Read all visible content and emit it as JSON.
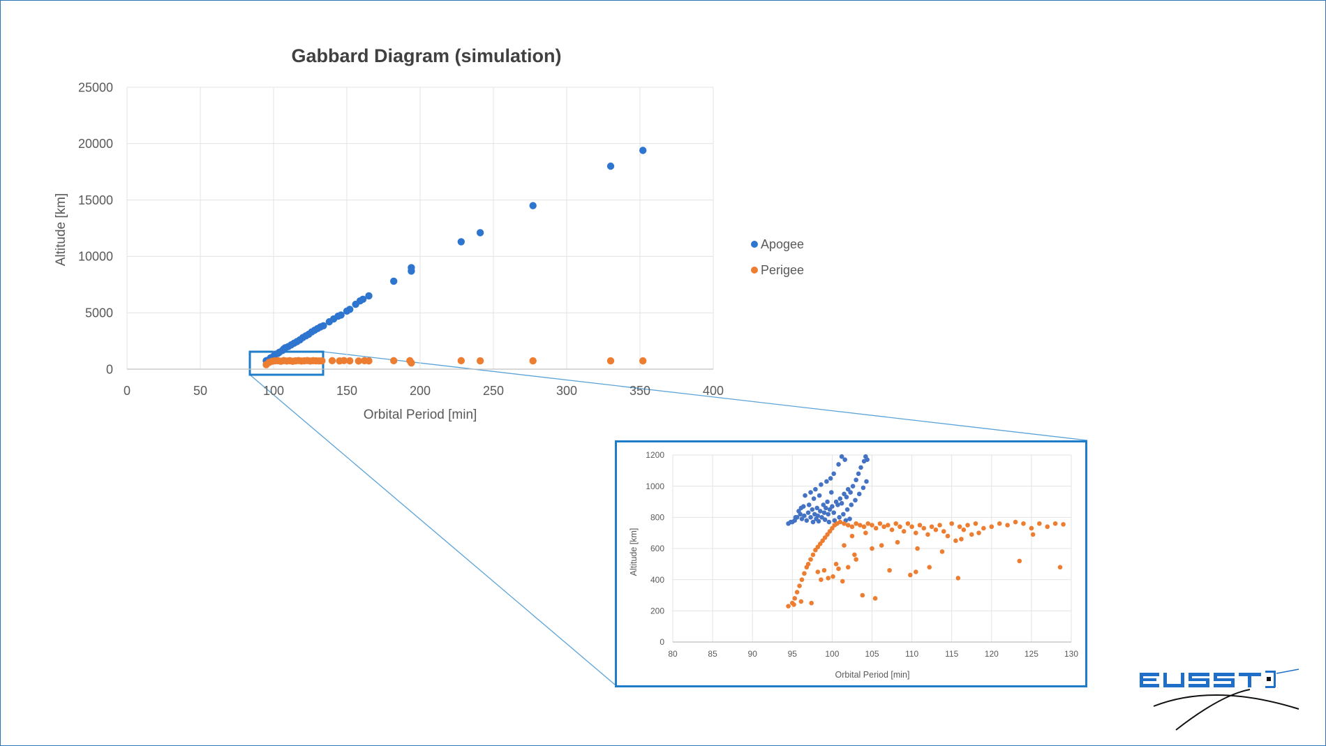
{
  "chart_data": [
    {
      "type": "scatter",
      "title": "Gabbard Diagram (simulation)",
      "xlabel": "Orbital Period [min]",
      "ylabel": "Altitude  [km]",
      "xlim": [
        0,
        400
      ],
      "ylim": [
        0,
        25000
      ],
      "xticks": [
        0,
        50,
        100,
        150,
        200,
        250,
        300,
        350,
        400
      ],
      "yticks": [
        0,
        5000,
        10000,
        15000,
        20000,
        25000
      ],
      "grid": true,
      "legend": "right",
      "series": [
        {
          "name": "Apogee",
          "color": "#2e75d0",
          "points": [
            [
              95,
              750
            ],
            [
              97,
              850
            ],
            [
              98,
              1000
            ],
            [
              100,
              1150
            ],
            [
              101,
              1300
            ],
            [
              103,
              1400
            ],
            [
              104,
              1500
            ],
            [
              106,
              1650
            ],
            [
              107,
              1800
            ],
            [
              108,
              1900
            ],
            [
              110,
              2000
            ],
            [
              112,
              2150
            ],
            [
              114,
              2300
            ],
            [
              116,
              2450
            ],
            [
              118,
              2600
            ],
            [
              120,
              2800
            ],
            [
              122,
              2950
            ],
            [
              124,
              3100
            ],
            [
              126,
              3300
            ],
            [
              128,
              3450
            ],
            [
              130,
              3600
            ],
            [
              132,
              3750
            ],
            [
              134,
              3850
            ],
            [
              138,
              4200
            ],
            [
              141,
              4450
            ],
            [
              144,
              4700
            ],
            [
              146,
              4800
            ],
            [
              150,
              5150
            ],
            [
              152,
              5300
            ],
            [
              156,
              5750
            ],
            [
              159,
              6050
            ],
            [
              161,
              6200
            ],
            [
              165,
              6500
            ],
            [
              182,
              7800
            ],
            [
              194,
              8700
            ],
            [
              194,
              9000
            ],
            [
              228,
              11300
            ],
            [
              241,
              12100
            ],
            [
              277,
              14500
            ],
            [
              330,
              18000
            ],
            [
              352,
              19400
            ]
          ]
        },
        {
          "name": "Perigee",
          "color": "#ed7d31",
          "points": [
            [
              95,
              400
            ],
            [
              97,
              600
            ],
            [
              99,
              700
            ],
            [
              101,
              740
            ],
            [
              103,
              750
            ],
            [
              105,
              700
            ],
            [
              107,
              760
            ],
            [
              109,
              720
            ],
            [
              111,
              750
            ],
            [
              113,
              700
            ],
            [
              115,
              740
            ],
            [
              117,
              760
            ],
            [
              119,
              720
            ],
            [
              121,
              740
            ],
            [
              123,
              760
            ],
            [
              125,
              720
            ],
            [
              127,
              750
            ],
            [
              129,
              740
            ],
            [
              131,
              730
            ],
            [
              133,
              740
            ],
            [
              140,
              750
            ],
            [
              145,
              730
            ],
            [
              148,
              760
            ],
            [
              152,
              740
            ],
            [
              158,
              720
            ],
            [
              162,
              750
            ],
            [
              165,
              730
            ],
            [
              182,
              750
            ],
            [
              193,
              750
            ],
            [
              194,
              550
            ],
            [
              228,
              750
            ],
            [
              241,
              740
            ],
            [
              277,
              740
            ],
            [
              330,
              740
            ],
            [
              352,
              740
            ]
          ]
        }
      ]
    },
    {
      "type": "scatter",
      "xlabel": "Orbital Period [min]",
      "ylabel": "Altitude  [km]",
      "xlim": [
        80,
        130
      ],
      "ylim": [
        0,
        1200
      ],
      "xticks": [
        80,
        85,
        90,
        95,
        100,
        105,
        110,
        115,
        120,
        125,
        130
      ],
      "yticks": [
        0,
        200,
        400,
        600,
        800,
        1000,
        1200
      ],
      "grid": true,
      "series": [
        {
          "name": "Apogee",
          "color": "#4472c4",
          "points": [
            [
              94.5,
              760
            ],
            [
              95,
              770
            ],
            [
              95.3,
              780
            ],
            [
              95.6,
              800
            ],
            [
              96,
              820
            ],
            [
              96.2,
              790
            ],
            [
              96.5,
              810
            ],
            [
              96.8,
              780
            ],
            [
              97,
              830
            ],
            [
              97.3,
              800
            ],
            [
              97.5,
              850
            ],
            [
              97.8,
              820
            ],
            [
              98,
              790
            ],
            [
              98.2,
              810
            ],
            [
              98.5,
              840
            ],
            [
              98.7,
              800
            ],
            [
              99,
              830
            ],
            [
              99.2,
              860
            ],
            [
              99.5,
              820
            ],
            [
              99.7,
              850
            ],
            [
              100,
              870
            ],
            [
              100.2,
              830
            ],
            [
              100.5,
              900
            ],
            [
              100.7,
              880
            ],
            [
              101,
              920
            ],
            [
              101.2,
              890
            ],
            [
              101.5,
              950
            ],
            [
              101.8,
              930
            ],
            [
              102,
              980
            ],
            [
              102.3,
              960
            ],
            [
              102.6,
              1000
            ],
            [
              103,
              1040
            ],
            [
              103.3,
              1080
            ],
            [
              103.6,
              1120
            ],
            [
              104,
              1160
            ],
            [
              104.2,
              1190
            ],
            [
              104.4,
              1170
            ],
            [
              101.2,
              1190
            ],
            [
              101.6,
              1170
            ],
            [
              100.8,
              1140
            ],
            [
              100.2,
              1080
            ],
            [
              99.8,
              1050
            ],
            [
              99.3,
              1030
            ],
            [
              98.6,
              1010
            ],
            [
              97.9,
              980
            ],
            [
              97.3,
              960
            ],
            [
              96.6,
              940
            ],
            [
              96.1,
              860
            ],
            [
              95.8,
              840
            ],
            [
              95.4,
              800
            ],
            [
              94.8,
              770
            ],
            [
              97.6,
              770
            ],
            [
              98.3,
              775
            ],
            [
              99.1,
              785
            ],
            [
              99.6,
              770
            ],
            [
              100.3,
              780
            ],
            [
              100.9,
              800
            ],
            [
              101.4,
              820
            ],
            [
              101.9,
              850
            ],
            [
              102.4,
              880
            ],
            [
              102.9,
              910
            ],
            [
              103.4,
              950
            ],
            [
              103.9,
              990
            ],
            [
              104.3,
              1030
            ],
            [
              100.6,
              760
            ],
            [
              101.7,
              780
            ],
            [
              102.2,
              790
            ],
            [
              99.4,
              900
            ],
            [
              98.9,
              880
            ],
            [
              98.1,
              860
            ],
            [
              97.1,
              880
            ],
            [
              96.4,
              870
            ],
            [
              97.7,
              920
            ],
            [
              98.4,
              940
            ],
            [
              99.9,
              960
            ]
          ]
        },
        {
          "name": "Perigee",
          "color": "#ed7d31",
          "points": [
            [
              94.5,
              230
            ],
            [
              95,
              250
            ],
            [
              95.3,
              280
            ],
            [
              95.6,
              320
            ],
            [
              95.9,
              360
            ],
            [
              96.2,
              400
            ],
            [
              96.5,
              440
            ],
            [
              96.8,
              480
            ],
            [
              97,
              500
            ],
            [
              97.3,
              530
            ],
            [
              97.6,
              560
            ],
            [
              97.9,
              590
            ],
            [
              98.2,
              610
            ],
            [
              98.5,
              630
            ],
            [
              98.8,
              650
            ],
            [
              99.1,
              670
            ],
            [
              99.4,
              690
            ],
            [
              99.7,
              710
            ],
            [
              100,
              730
            ],
            [
              100.3,
              750
            ],
            [
              100.6,
              760
            ],
            [
              101,
              770
            ],
            [
              101.5,
              760
            ],
            [
              102,
              750
            ],
            [
              102.5,
              740
            ],
            [
              103,
              760
            ],
            [
              103.5,
              750
            ],
            [
              104,
              740
            ],
            [
              104.5,
              760
            ],
            [
              105,
              750
            ],
            [
              105.5,
              730
            ],
            [
              106,
              760
            ],
            [
              106.5,
              740
            ],
            [
              107,
              750
            ],
            [
              107.5,
              720
            ],
            [
              108,
              760
            ],
            [
              108.5,
              740
            ],
            [
              109,
              710
            ],
            [
              109.5,
              760
            ],
            [
              110,
              740
            ],
            [
              110.5,
              700
            ],
            [
              111,
              750
            ],
            [
              111.5,
              730
            ],
            [
              112,
              690
            ],
            [
              112.5,
              740
            ],
            [
              113,
              720
            ],
            [
              113.5,
              750
            ],
            [
              114,
              710
            ],
            [
              114.5,
              680
            ],
            [
              115,
              760
            ],
            [
              115.5,
              650
            ],
            [
              116,
              740
            ],
            [
              116.5,
              720
            ],
            [
              117,
              750
            ],
            [
              117.5,
              690
            ],
            [
              118,
              760
            ],
            [
              119,
              730
            ],
            [
              120,
              740
            ],
            [
              121,
              760
            ],
            [
              122,
              750
            ],
            [
              123,
              770
            ],
            [
              124,
              760
            ],
            [
              125,
              730
            ],
            [
              126,
              760
            ],
            [
              127,
              740
            ],
            [
              128,
              760
            ],
            [
              129,
              755
            ],
            [
              125.2,
              690
            ],
            [
              123.5,
              520
            ],
            [
              128.6,
              480
            ],
            [
              115.8,
              410
            ],
            [
              110.5,
              450
            ],
            [
              109.8,
              430
            ],
            [
              107.2,
              460
            ],
            [
              105.4,
              280
            ],
            [
              103.8,
              300
            ],
            [
              101.3,
              390
            ],
            [
              100.1,
              420
            ],
            [
              99.5,
              410
            ],
            [
              98.6,
              400
            ],
            [
              97.4,
              250
            ],
            [
              96.1,
              260
            ],
            [
              95.2,
              240
            ],
            [
              99,
              460
            ],
            [
              100.5,
              500
            ],
            [
              102,
              480
            ],
            [
              103,
              530
            ],
            [
              101.5,
              620
            ],
            [
              102.5,
              680
            ],
            [
              104.2,
              700
            ],
            [
              106.2,
              620
            ],
            [
              108.2,
              640
            ],
            [
              110.7,
              600
            ],
            [
              113.8,
              580
            ],
            [
              112.2,
              480
            ],
            [
              116.2,
              660
            ],
            [
              118.4,
              700
            ],
            [
              105,
              600
            ],
            [
              102.8,
              560
            ],
            [
              100.8,
              470
            ],
            [
              98.2,
              450
            ]
          ]
        }
      ]
    }
  ]
}
